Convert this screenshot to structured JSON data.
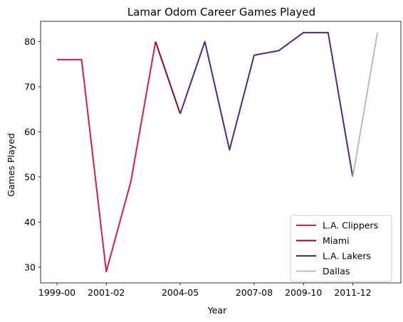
{
  "chart_data": {
    "type": "line",
    "title": "Lamar Odom Career Games Played",
    "xlabel": "Year",
    "ylabel": "Games Played",
    "x": [
      "1999-00",
      "2000-01",
      "2001-02",
      "2002-03",
      "2003-04",
      "2004-05",
      "2005-06",
      "2006-07",
      "2007-08",
      "2008-09",
      "2009-10",
      "2010-11",
      "2011-12",
      "2012-13"
    ],
    "x_tick_labels": [
      "1999-00",
      "2001-02",
      "2004-05",
      "2007-08",
      "2009-10",
      "2011-12"
    ],
    "ylim": [
      26.5,
      84.5
    ],
    "y_ticks": [
      30,
      40,
      50,
      60,
      70,
      80
    ],
    "grid": false,
    "legend_placement": "lower-right",
    "series": [
      {
        "name": "L.A. Clippers",
        "color": "#e0194c",
        "points": [
          {
            "x": "1999-00",
            "y": 76
          },
          {
            "x": "2000-01",
            "y": 76
          },
          {
            "x": "2001-02",
            "y": 29
          },
          {
            "x": "2002-03",
            "y": 49
          },
          {
            "x": "2003-04",
            "y": 80
          }
        ]
      },
      {
        "name": "Miami",
        "color": "#98002e",
        "points": [
          {
            "x": "2003-04",
            "y": 80
          },
          {
            "x": "2004-05",
            "y": 64
          }
        ]
      },
      {
        "name": "L.A. Lakers",
        "color": "#552583",
        "points": [
          {
            "x": "2004-05",
            "y": 64
          },
          {
            "x": "2005-06",
            "y": 80
          },
          {
            "x": "2006-07",
            "y": 56
          },
          {
            "x": "2007-08",
            "y": 77
          },
          {
            "x": "2008-09",
            "y": 78
          },
          {
            "x": "2009-10",
            "y": 82
          },
          {
            "x": "2010-11",
            "y": 82
          },
          {
            "x": "2011-12",
            "y": 50
          }
        ]
      },
      {
        "name": "Dallas",
        "color": "#bbbbbb",
        "points": [
          {
            "x": "2011-12",
            "y": 50
          },
          {
            "x": "2012-13",
            "y": 82
          }
        ]
      }
    ]
  }
}
